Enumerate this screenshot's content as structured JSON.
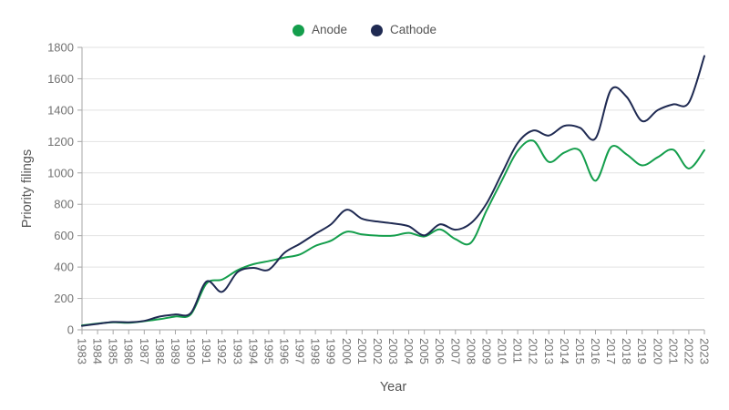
{
  "legend": {
    "items": [
      {
        "label": "Anode",
        "color": "#149e4c"
      },
      {
        "label": "Cathode",
        "color": "#1f2a52"
      }
    ]
  },
  "chart_data": {
    "type": "line",
    "title": "",
    "xlabel": "Year",
    "ylabel": "Priority filings",
    "x": [
      1983,
      1984,
      1985,
      1986,
      1987,
      1988,
      1989,
      1990,
      1991,
      1992,
      1993,
      1994,
      1995,
      1996,
      1997,
      1998,
      1999,
      2000,
      2001,
      2002,
      2003,
      2004,
      2005,
      2006,
      2007,
      2008,
      2009,
      2010,
      2011,
      2012,
      2013,
      2014,
      2015,
      2016,
      2017,
      2018,
      2019,
      2020,
      2021,
      2022,
      2023
    ],
    "series": [
      {
        "name": "Anode",
        "color": "#149e4c",
        "values": [
          28,
          40,
          48,
          45,
          55,
          68,
          85,
          100,
          295,
          320,
          380,
          418,
          438,
          460,
          480,
          535,
          568,
          625,
          608,
          600,
          600,
          618,
          595,
          640,
          578,
          555,
          760,
          955,
          1140,
          1205,
          1070,
          1130,
          1142,
          950,
          1165,
          1118,
          1048,
          1100,
          1148,
          1028,
          1145
        ]
      },
      {
        "name": "Cathode",
        "color": "#1f2a52",
        "values": [
          25,
          38,
          50,
          48,
          57,
          85,
          98,
          108,
          308,
          242,
          368,
          395,
          383,
          490,
          548,
          612,
          672,
          765,
          708,
          690,
          678,
          660,
          602,
          672,
          638,
          680,
          805,
          1000,
          1190,
          1270,
          1238,
          1300,
          1288,
          1220,
          1530,
          1485,
          1330,
          1400,
          1437,
          1448,
          1745
        ]
      }
    ],
    "ylim": [
      0,
      1800
    ],
    "yticks": [
      0,
      200,
      400,
      600,
      800,
      1000,
      1200,
      1400,
      1600,
      1800
    ],
    "grid": "horizontal",
    "legend_position": "top-center",
    "styles": {
      "grid_color": "#e2e2e2",
      "axis_color": "#a6a6a6",
      "tick_label_color": "#737373",
      "axis_title_color": "#545454",
      "line_width": 2
    }
  }
}
